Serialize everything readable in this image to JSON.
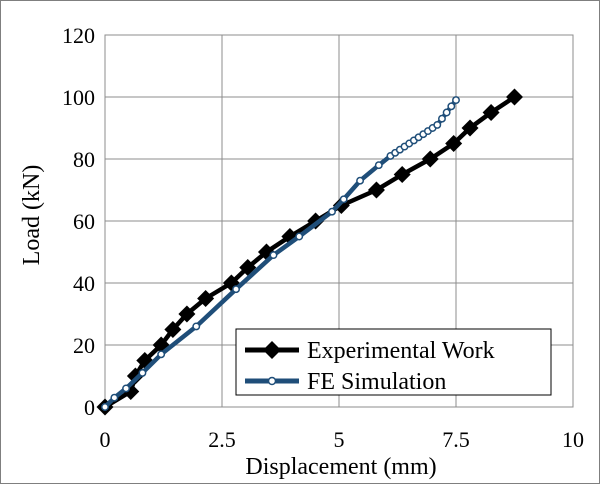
{
  "chart_data": {
    "type": "line",
    "xlabel": "Displacement (mm)",
    "ylabel": "Load (kN)",
    "xlim": [
      0,
      10
    ],
    "ylim": [
      0,
      120
    ],
    "xticks": [
      "0",
      "2.5",
      "5",
      "7.5",
      "10"
    ],
    "yticks": [
      "0",
      "20",
      "40",
      "60",
      "80",
      "100",
      "120"
    ],
    "grid": true,
    "legend_position": "bottom-right",
    "series": [
      {
        "name": "Experimental Work",
        "color": "#000000",
        "marker": "diamond",
        "points": [
          [
            0.0,
            0
          ],
          [
            0.55,
            5
          ],
          [
            0.65,
            10
          ],
          [
            0.85,
            15
          ],
          [
            1.2,
            20
          ],
          [
            1.45,
            25
          ],
          [
            1.75,
            30
          ],
          [
            2.15,
            35
          ],
          [
            2.7,
            40
          ],
          [
            3.05,
            45
          ],
          [
            3.45,
            50
          ],
          [
            3.95,
            55
          ],
          [
            4.5,
            60
          ],
          [
            5.05,
            65
          ],
          [
            5.8,
            70
          ],
          [
            6.35,
            75
          ],
          [
            6.95,
            80
          ],
          [
            7.45,
            85
          ],
          [
            7.8,
            90
          ],
          [
            8.25,
            95
          ],
          [
            8.75,
            100
          ]
        ]
      },
      {
        "name": "FE Simulation",
        "color": "#1f4e79",
        "marker": "circle",
        "points": [
          [
            0.0,
            0
          ],
          [
            0.2,
            3
          ],
          [
            0.45,
            6
          ],
          [
            0.8,
            11
          ],
          [
            1.2,
            17
          ],
          [
            1.95,
            26
          ],
          [
            2.8,
            38
          ],
          [
            3.6,
            49
          ],
          [
            4.15,
            55
          ],
          [
            4.85,
            63
          ],
          [
            5.1,
            67
          ],
          [
            5.45,
            73
          ],
          [
            5.85,
            78
          ],
          [
            6.1,
            81
          ],
          [
            6.2,
            82
          ],
          [
            6.3,
            83
          ],
          [
            6.4,
            84
          ],
          [
            6.5,
            85
          ],
          [
            6.6,
            86
          ],
          [
            6.7,
            87
          ],
          [
            6.8,
            88
          ],
          [
            6.9,
            89
          ],
          [
            7.0,
            90
          ],
          [
            7.1,
            91
          ],
          [
            7.2,
            93
          ],
          [
            7.3,
            95
          ],
          [
            7.4,
            97
          ],
          [
            7.5,
            99
          ]
        ]
      }
    ]
  }
}
